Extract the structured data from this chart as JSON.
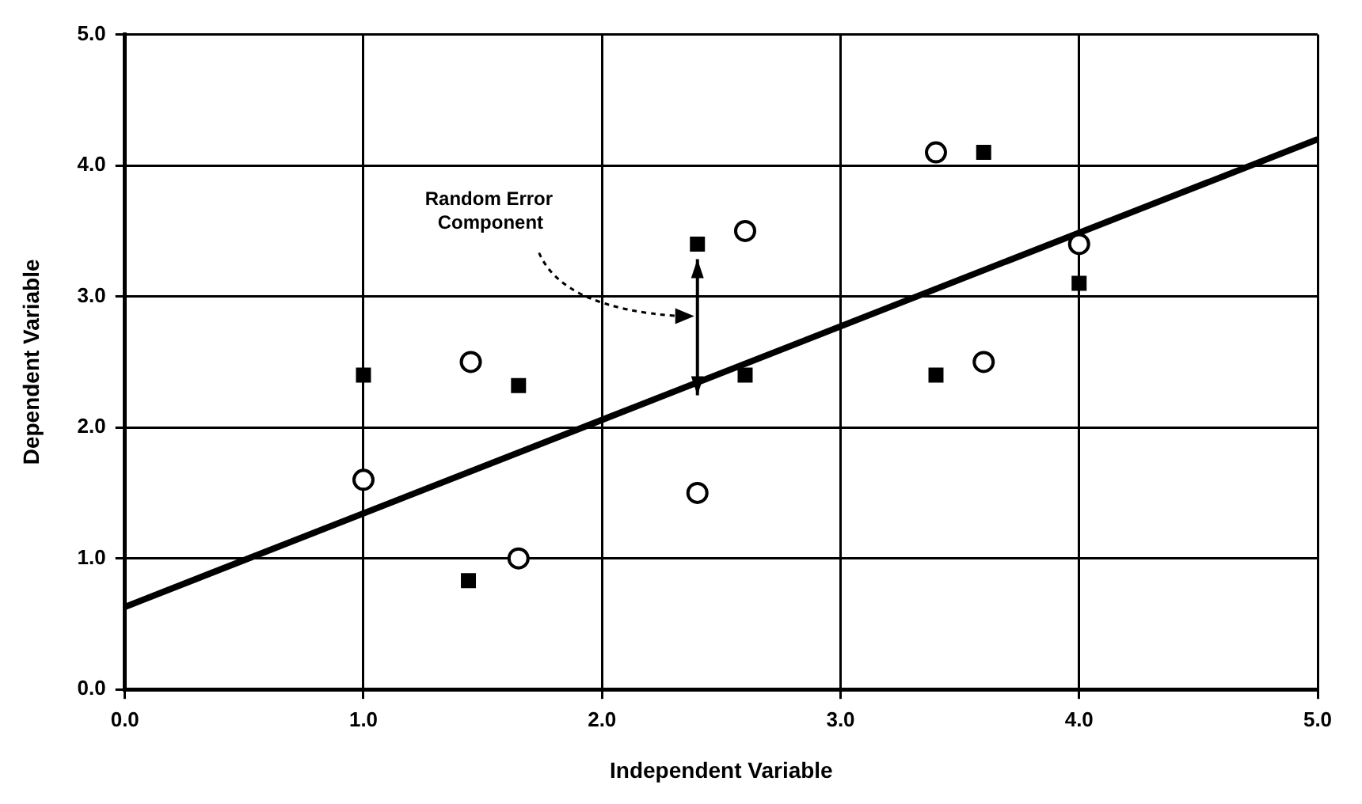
{
  "chart_data": {
    "type": "scatter",
    "xlabel": "Independent Variable",
    "ylabel": "Dependent Variable",
    "xlim": [
      0,
      5
    ],
    "ylim": [
      0,
      5
    ],
    "xticks": [
      {
        "value": 0,
        "label": "0.0"
      },
      {
        "value": 1,
        "label": "1.0"
      },
      {
        "value": 2,
        "label": "2.0"
      },
      {
        "value": 3,
        "label": "3.0"
      },
      {
        "value": 4,
        "label": "4.0"
      },
      {
        "value": 5,
        "label": "5.0"
      }
    ],
    "yticks": [
      {
        "value": 0,
        "label": "0.0"
      },
      {
        "value": 1,
        "label": "1.0"
      },
      {
        "value": 2,
        "label": "2.0"
      },
      {
        "value": 3,
        "label": "3.0"
      },
      {
        "value": 4,
        "label": "4.0"
      },
      {
        "value": 5,
        "label": "5.0"
      }
    ],
    "grid": true,
    "legend": false,
    "series": [
      {
        "marker": "square",
        "color": "#000000",
        "x": [
          1.0,
          1.44,
          1.65,
          2.4,
          2.6,
          3.4,
          3.6,
          4.0
        ],
        "values": [
          2.4,
          0.83,
          2.32,
          3.4,
          2.4,
          2.4,
          4.1,
          3.1
        ]
      },
      {
        "marker": "circle",
        "color": "#000000",
        "x": [
          1.0,
          1.45,
          1.65,
          2.4,
          2.6,
          3.4,
          3.6,
          4.0
        ],
        "values": [
          1.6,
          2.5,
          1.0,
          1.5,
          3.5,
          4.1,
          2.5,
          3.4
        ]
      },
      {
        "type": "line",
        "marker": "none",
        "line_style": "solid",
        "color": "#000000",
        "x": [
          0,
          5
        ],
        "values": [
          0.63,
          4.2
        ]
      }
    ],
    "annotations": [
      "Random Error Component"
    ]
  }
}
